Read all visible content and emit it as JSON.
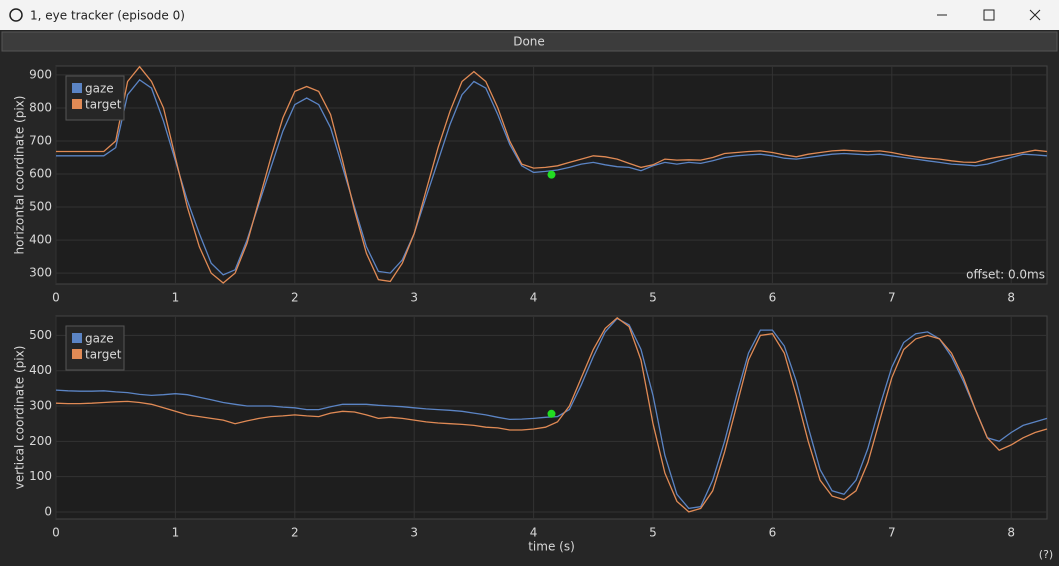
{
  "window": {
    "title": "1, eye tracker (episode 0)",
    "button": "Done",
    "help": "(?)"
  },
  "chart_data": [
    {
      "type": "line",
      "ylabel": "horizontal coordinate (pix)",
      "annotation": "offset: 0.0ms",
      "x": [
        0,
        0.1,
        0.2,
        0.3,
        0.4,
        0.5,
        0.6,
        0.7,
        0.8,
        0.9,
        1,
        1.1,
        1.2,
        1.3,
        1.4,
        1.5,
        1.6,
        1.7,
        1.8,
        1.9,
        2,
        2.1,
        2.2,
        2.3,
        2.4,
        2.5,
        2.6,
        2.7,
        2.8,
        2.9,
        3,
        3.1,
        3.2,
        3.3,
        3.4,
        3.5,
        3.6,
        3.7,
        3.8,
        3.9,
        4,
        4.1,
        4.2,
        4.3,
        4.4,
        4.5,
        4.6,
        4.7,
        4.8,
        4.9,
        5,
        5.1,
        5.2,
        5.3,
        5.4,
        5.5,
        5.6,
        5.7,
        5.8,
        5.9,
        6,
        6.1,
        6.2,
        6.3,
        6.4,
        6.5,
        6.6,
        6.7,
        6.8,
        6.9,
        7,
        7.1,
        7.2,
        7.3,
        7.4,
        7.5,
        7.6,
        7.7,
        7.8,
        7.9,
        8,
        8.1,
        8.2,
        8.3
      ],
      "series": [
        {
          "name": "gaze",
          "color": "#5b84c4",
          "values": [
            655,
            655,
            655,
            655,
            655,
            680,
            840,
            885,
            860,
            760,
            640,
            520,
            420,
            330,
            295,
            310,
            400,
            510,
            620,
            730,
            810,
            830,
            810,
            740,
            620,
            500,
            380,
            305,
            300,
            340,
            420,
            530,
            640,
            750,
            840,
            880,
            860,
            780,
            690,
            625,
            605,
            608,
            612,
            620,
            630,
            635,
            628,
            622,
            620,
            610,
            625,
            635,
            630,
            635,
            632,
            640,
            650,
            655,
            658,
            660,
            655,
            648,
            645,
            650,
            655,
            660,
            662,
            660,
            658,
            660,
            655,
            650,
            645,
            640,
            635,
            630,
            628,
            625,
            630,
            640,
            650,
            660,
            658,
            655
          ]
        },
        {
          "name": "target",
          "color": "#e08a55",
          "values": [
            668,
            668,
            668,
            668,
            668,
            700,
            880,
            925,
            880,
            800,
            650,
            500,
            380,
            300,
            270,
            300,
            390,
            520,
            650,
            770,
            850,
            865,
            850,
            780,
            640,
            490,
            360,
            280,
            275,
            330,
            420,
            550,
            680,
            790,
            880,
            910,
            880,
            800,
            700,
            630,
            618,
            620,
            625,
            635,
            645,
            655,
            652,
            645,
            632,
            620,
            628,
            645,
            642,
            643,
            642,
            650,
            662,
            665,
            668,
            670,
            665,
            658,
            652,
            660,
            665,
            670,
            672,
            670,
            668,
            670,
            665,
            658,
            652,
            648,
            645,
            640,
            636,
            635,
            645,
            652,
            658,
            665,
            672,
            668
          ]
        }
      ],
      "marker": {
        "x": 4.15,
        "y": 598,
        "color": "#22dd22"
      },
      "xlim": [
        0,
        8.3
      ],
      "xticks": [
        0,
        1,
        2,
        3,
        4,
        5,
        6,
        7,
        8
      ],
      "ylim": [
        267,
        927
      ],
      "yticks": [
        300,
        400,
        500,
        600,
        700,
        800,
        900
      ],
      "grid": true,
      "legend": "top-left"
    },
    {
      "type": "line",
      "ylabel": "vertical coordinate (pix)",
      "xlabel": "time (s)",
      "x": [
        0,
        0.1,
        0.2,
        0.3,
        0.4,
        0.5,
        0.6,
        0.7,
        0.8,
        0.9,
        1,
        1.1,
        1.2,
        1.3,
        1.4,
        1.5,
        1.6,
        1.7,
        1.8,
        1.9,
        2,
        2.1,
        2.2,
        2.3,
        2.4,
        2.5,
        2.6,
        2.7,
        2.8,
        2.9,
        3,
        3.1,
        3.2,
        3.3,
        3.4,
        3.5,
        3.6,
        3.7,
        3.8,
        3.9,
        4,
        4.1,
        4.2,
        4.3,
        4.4,
        4.5,
        4.6,
        4.7,
        4.8,
        4.9,
        5,
        5.1,
        5.2,
        5.3,
        5.4,
        5.5,
        5.6,
        5.7,
        5.8,
        5.9,
        6,
        6.1,
        6.2,
        6.3,
        6.4,
        6.5,
        6.6,
        6.7,
        6.8,
        6.9,
        7,
        7.1,
        7.2,
        7.3,
        7.4,
        7.5,
        7.6,
        7.7,
        7.8,
        7.9,
        8,
        8.1,
        8.2,
        8.3
      ],
      "series": [
        {
          "name": "gaze",
          "color": "#5b84c4",
          "values": [
            345,
            343,
            342,
            342,
            343,
            340,
            338,
            333,
            330,
            332,
            335,
            332,
            325,
            318,
            310,
            305,
            300,
            300,
            300,
            297,
            295,
            290,
            290,
            298,
            305,
            305,
            305,
            302,
            300,
            298,
            295,
            292,
            290,
            288,
            285,
            280,
            275,
            268,
            262,
            263,
            265,
            268,
            270,
            290,
            360,
            440,
            510,
            548,
            530,
            460,
            330,
            160,
            50,
            10,
            15,
            90,
            200,
            330,
            450,
            515,
            515,
            470,
            370,
            240,
            120,
            60,
            50,
            90,
            180,
            300,
            410,
            480,
            505,
            510,
            490,
            440,
            370,
            290,
            210,
            200,
            225,
            245,
            255,
            265
          ]
        },
        {
          "name": "target",
          "color": "#e08a55",
          "values": [
            308,
            307,
            307,
            308,
            310,
            312,
            313,
            310,
            305,
            295,
            285,
            275,
            270,
            265,
            260,
            250,
            258,
            265,
            270,
            272,
            275,
            272,
            270,
            280,
            285,
            283,
            275,
            265,
            268,
            265,
            260,
            255,
            252,
            250,
            248,
            245,
            240,
            238,
            232,
            232,
            235,
            240,
            255,
            300,
            380,
            460,
            520,
            550,
            525,
            430,
            250,
            110,
            30,
            0,
            10,
            60,
            170,
            300,
            430,
            500,
            505,
            450,
            330,
            200,
            90,
            45,
            35,
            60,
            140,
            260,
            380,
            460,
            490,
            500,
            490,
            450,
            380,
            290,
            210,
            175,
            190,
            210,
            225,
            235
          ]
        }
      ],
      "marker": {
        "x": 4.15,
        "y": 278,
        "color": "#22dd22"
      },
      "xlim": [
        0,
        8.3
      ],
      "xticks": [
        0,
        1,
        2,
        3,
        4,
        5,
        6,
        7,
        8
      ],
      "ylim": [
        -20,
        555
      ],
      "yticks": [
        0,
        100,
        200,
        300,
        400,
        500
      ],
      "grid": true,
      "legend": "top-left"
    }
  ]
}
